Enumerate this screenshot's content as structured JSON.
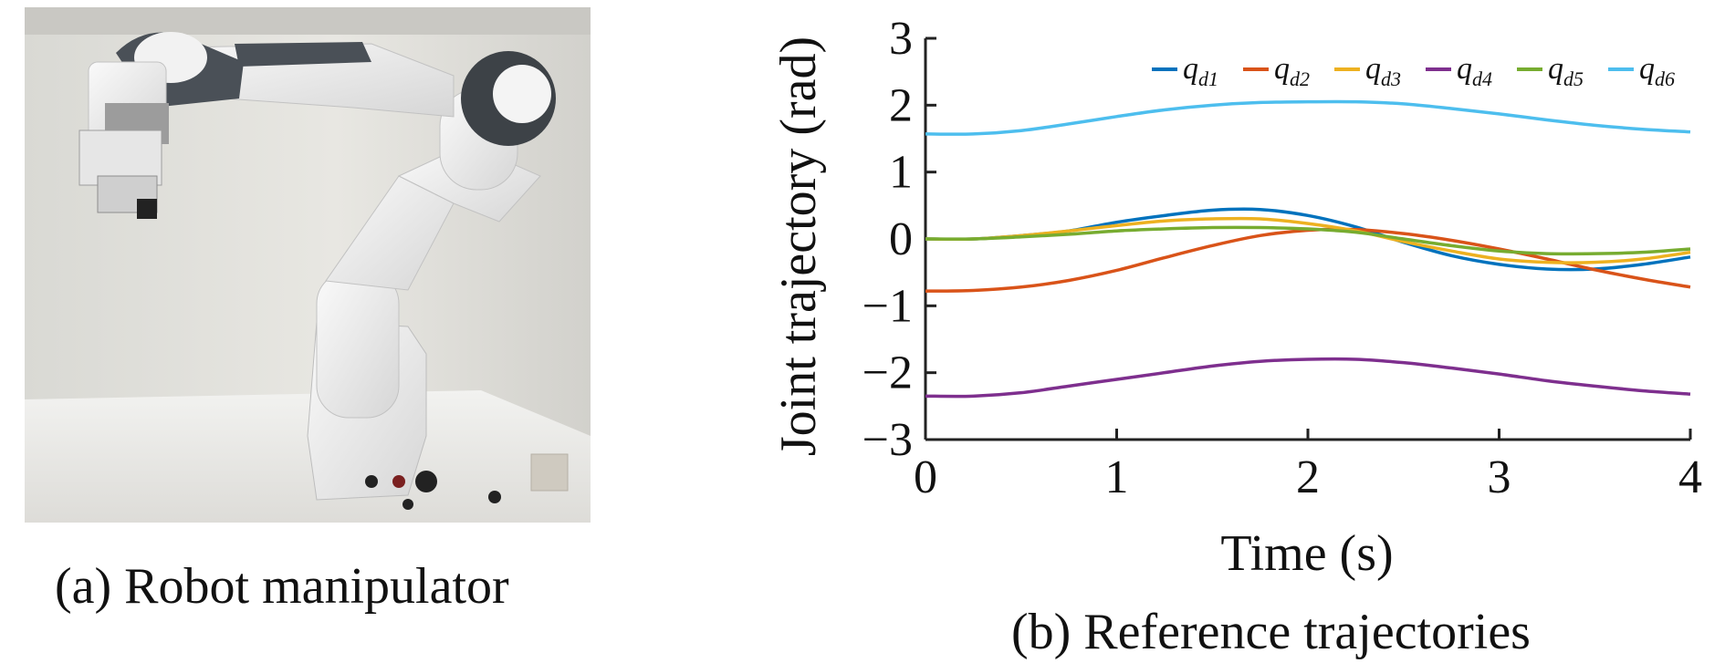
{
  "panel_a": {
    "caption": "(a) Robot manipulator",
    "image": "photo of a white collaborative robot arm with dark grey joint caps mounted on a white table"
  },
  "panel_b": {
    "caption": "(b) Reference trajectories"
  },
  "chart_data": {
    "type": "line",
    "xlabel": "Time (s)",
    "ylabel": "Joint trajectory (rad)",
    "xlim": [
      0,
      4
    ],
    "ylim": [
      -3,
      3
    ],
    "xticks": [
      "0",
      "1",
      "2",
      "3",
      "4"
    ],
    "yticks": [
      "3",
      "2",
      "1",
      "0",
      "−1",
      "−2",
      "−3"
    ],
    "grid": false,
    "legend_position": "top-right",
    "x": [
      0,
      0.25,
      0.5,
      0.75,
      1,
      1.25,
      1.5,
      1.75,
      2,
      2.25,
      2.5,
      2.75,
      3,
      3.25,
      3.5,
      3.75,
      4
    ],
    "series": [
      {
        "name": "q_d1",
        "label_main": "q",
        "label_sub": "d1",
        "color": "#0072BD",
        "values": [
          0.0,
          0.0,
          0.05,
          0.12,
          0.25,
          0.35,
          0.43,
          0.44,
          0.35,
          0.18,
          -0.05,
          -0.25,
          -0.38,
          -0.45,
          -0.45,
          -0.38,
          -0.27
        ]
      },
      {
        "name": "q_d2",
        "label_main": "q",
        "label_sub": "d2",
        "color": "#D95319",
        "values": [
          -0.78,
          -0.77,
          -0.72,
          -0.62,
          -0.47,
          -0.28,
          -0.1,
          0.05,
          0.13,
          0.14,
          0.08,
          -0.02,
          -0.15,
          -0.3,
          -0.46,
          -0.6,
          -0.72
        ]
      },
      {
        "name": "q_d3",
        "label_main": "q",
        "label_sub": "d3",
        "color": "#EDB120",
        "values": [
          0.0,
          0.0,
          0.05,
          0.12,
          0.2,
          0.27,
          0.3,
          0.3,
          0.23,
          0.12,
          -0.04,
          -0.18,
          -0.3,
          -0.35,
          -0.35,
          -0.3,
          -0.2
        ]
      },
      {
        "name": "q_d4",
        "label_main": "q",
        "label_sub": "d4",
        "color": "#7E2F8E",
        "values": [
          -2.35,
          -2.35,
          -2.3,
          -2.2,
          -2.1,
          -2.0,
          -1.9,
          -1.83,
          -1.8,
          -1.8,
          -1.85,
          -1.93,
          -2.02,
          -2.12,
          -2.2,
          -2.27,
          -2.32
        ]
      },
      {
        "name": "q_d5",
        "label_main": "q",
        "label_sub": "d5",
        "color": "#77AC30",
        "values": [
          0.0,
          0.0,
          0.03,
          0.07,
          0.12,
          0.15,
          0.17,
          0.17,
          0.15,
          0.1,
          0.0,
          -0.1,
          -0.18,
          -0.22,
          -0.22,
          -0.2,
          -0.15
        ]
      },
      {
        "name": "q_d6",
        "label_main": "q",
        "label_sub": "d6",
        "color": "#4DBEEE",
        "values": [
          1.57,
          1.57,
          1.62,
          1.72,
          1.83,
          1.93,
          2.0,
          2.04,
          2.05,
          2.05,
          2.02,
          1.95,
          1.87,
          1.78,
          1.7,
          1.64,
          1.6
        ]
      }
    ]
  }
}
